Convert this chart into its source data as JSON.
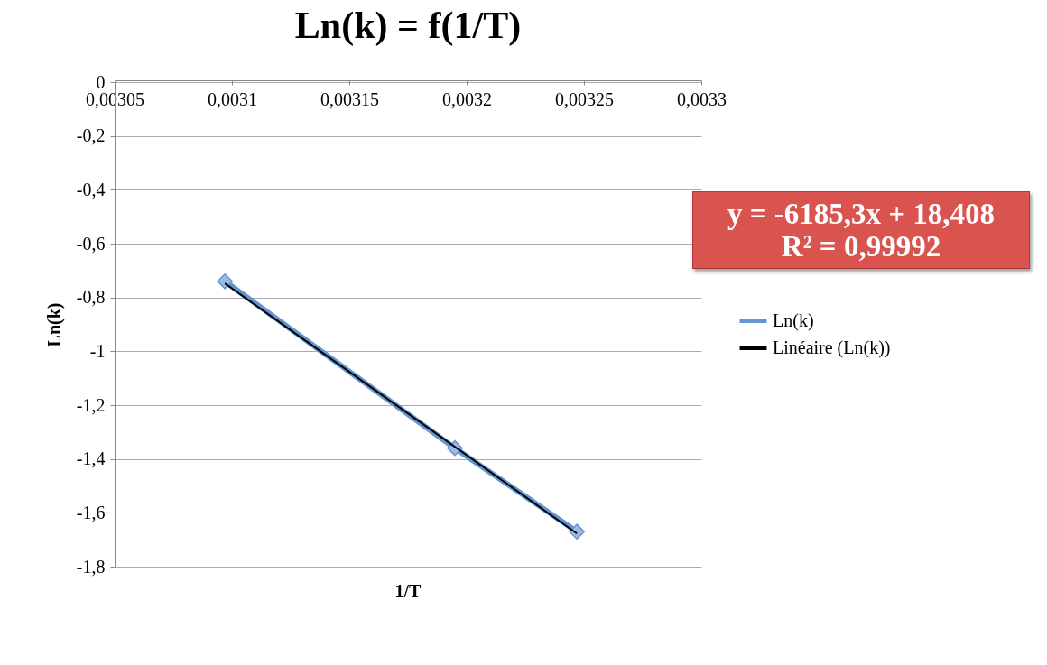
{
  "chart_data": {
    "type": "line",
    "title": "Ln(k) = f(1/T)",
    "xlabel": "1/T",
    "ylabel": "Ln(k)",
    "annotations": [
      "y = -6185,3x + 18,408",
      "R² = 0,99992"
    ],
    "xlim": [
      0.00305,
      0.0033
    ],
    "xticks": [
      {
        "value": 0.00305,
        "label": "0,00305"
      },
      {
        "value": 0.0031,
        "label": "0,0031"
      },
      {
        "value": 0.00315,
        "label": "0,00315"
      },
      {
        "value": 0.0032,
        "label": "0,0032"
      },
      {
        "value": 0.00325,
        "label": "0,00325"
      },
      {
        "value": 0.0033,
        "label": "0,0033"
      }
    ],
    "ylim": [
      -1.8,
      0
    ],
    "yticks": [
      0,
      {
        "value": -0.2,
        "label": "-0,2"
      },
      {
        "value": -0.4,
        "label": "-0,4"
      },
      {
        "value": -0.6,
        "label": "-0,6"
      },
      {
        "value": -0.8,
        "label": "-0,8"
      },
      -1,
      {
        "value": -1.2,
        "label": "-1,2"
      },
      {
        "value": -1.4,
        "label": "-1,4"
      },
      {
        "value": -1.6,
        "label": "-1,6"
      },
      {
        "value": -1.8,
        "label": "-1,8"
      }
    ],
    "grid": "y",
    "legend": "right",
    "series": [
      {
        "name": "Ln(k)",
        "marker": "diamond",
        "color": "#6495d2",
        "x": [
          0.003097,
          0.003195,
          0.003247
        ],
        "values": [
          -0.74,
          -1.36,
          -1.67
        ]
      },
      {
        "name": "Linéaire (Ln(k))",
        "color": "#000000",
        "x": [
          0.003097,
          0.003247
        ],
        "values": [
          -0.748,
          -1.677
        ]
      }
    ]
  }
}
